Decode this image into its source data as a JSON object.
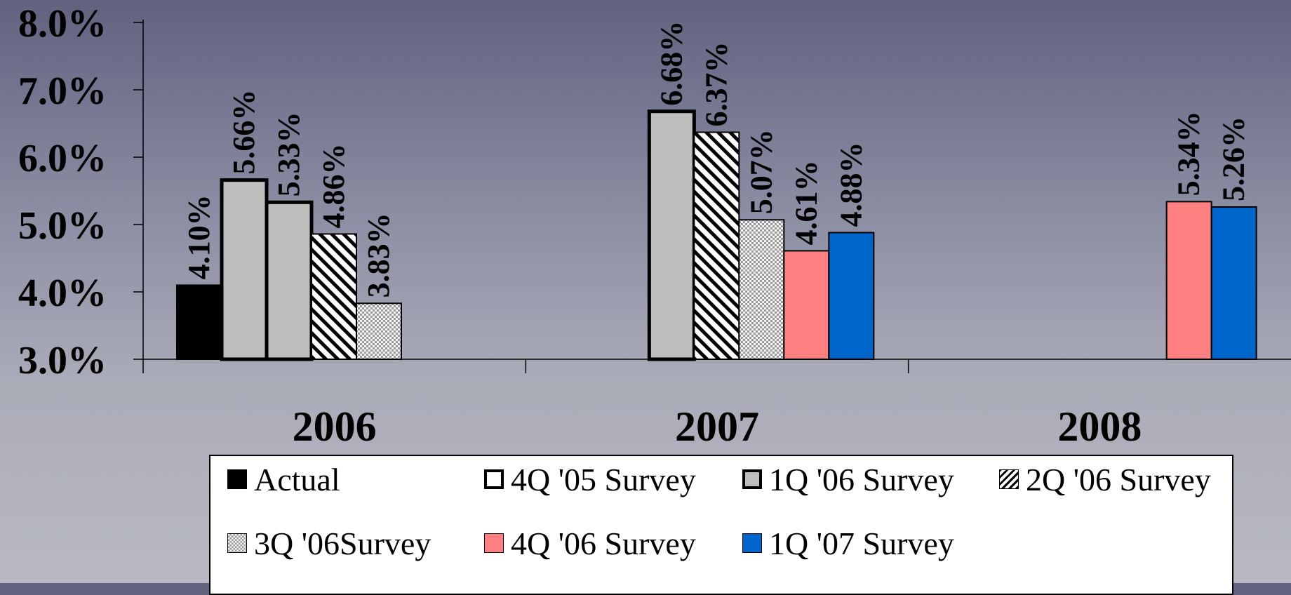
{
  "chart_data": {
    "type": "bar",
    "categories": [
      "2006",
      "2007",
      "2008"
    ],
    "ylim": [
      3.0,
      8.0
    ],
    "yticks": [
      "3.0%",
      "4.0%",
      "5.0%",
      "6.0%",
      "7.0%",
      "8.0%"
    ],
    "legend_position": "bottom",
    "series": [
      {
        "name": "Actual",
        "values": [
          4.1,
          null,
          null
        ],
        "labels": [
          "4.10%",
          "",
          ""
        ],
        "color": "#000000",
        "pattern": "solid",
        "border": "#000000"
      },
      {
        "name": "4Q '05 Survey",
        "values": [
          5.66,
          null,
          null
        ],
        "labels": [
          "5.66%",
          "",
          ""
        ],
        "color": "#bdbdbd",
        "pattern": "solid",
        "border": "#000000",
        "thick": true
      },
      {
        "name": "1Q '06 Survey",
        "values": [
          5.33,
          6.68,
          null
        ],
        "labels": [
          "5.33%",
          "6.68%",
          ""
        ],
        "color": "#bdbdbd",
        "pattern": "solid",
        "border": "#000000",
        "thick": true
      },
      {
        "name": "2Q '06 Survey",
        "values": [
          4.86,
          6.37,
          null
        ],
        "labels": [
          "4.86%",
          "6.37%",
          ""
        ],
        "color": "#ffffff",
        "pattern": "diagonal",
        "border": "#000000"
      },
      {
        "name": "3Q '06Survey",
        "values": [
          3.83,
          5.07,
          null
        ],
        "labels": [
          "3.83%",
          "5.07%",
          ""
        ],
        "color": "#e6e6e6",
        "pattern": "checker",
        "border": "#000000"
      },
      {
        "name": "4Q '06 Survey",
        "values": [
          null,
          4.61,
          5.34
        ],
        "labels": [
          "",
          "4.61%",
          "5.34%"
        ],
        "color": "#ff8080",
        "pattern": "solid",
        "border": "#000000"
      },
      {
        "name": "1Q '07 Survey",
        "values": [
          null,
          4.88,
          5.26
        ],
        "labels": [
          "",
          "4.88%",
          "5.26%"
        ],
        "color": "#0066cc",
        "pattern": "solid",
        "border": "#000000"
      }
    ]
  }
}
